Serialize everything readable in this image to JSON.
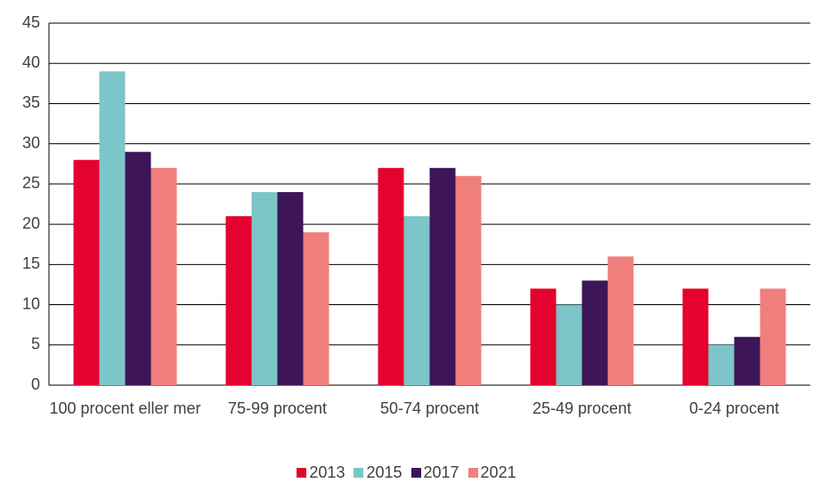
{
  "chart_data": {
    "type": "bar",
    "categories": [
      "100 procent eller mer",
      "75-99 procent",
      "50-74 procent",
      "25-49 procent",
      "0-24 procent"
    ],
    "series": [
      {
        "name": "2013",
        "color": "#e4032e",
        "values": [
          28,
          21,
          27,
          12,
          12
        ]
      },
      {
        "name": "2015",
        "color": "#7cc5c8",
        "values": [
          39,
          24,
          21,
          10,
          5
        ]
      },
      {
        "name": "2017",
        "color": "#3d1558",
        "values": [
          29,
          24,
          27,
          13,
          6
        ]
      },
      {
        "name": "2021",
        "color": "#f07f7c",
        "values": [
          27,
          19,
          26,
          16,
          12
        ]
      }
    ],
    "ylim": [
      0,
      45
    ],
    "yticks": [
      0,
      5,
      10,
      15,
      20,
      25,
      30,
      35,
      40,
      45
    ],
    "grid": true,
    "legend": "bottom"
  }
}
